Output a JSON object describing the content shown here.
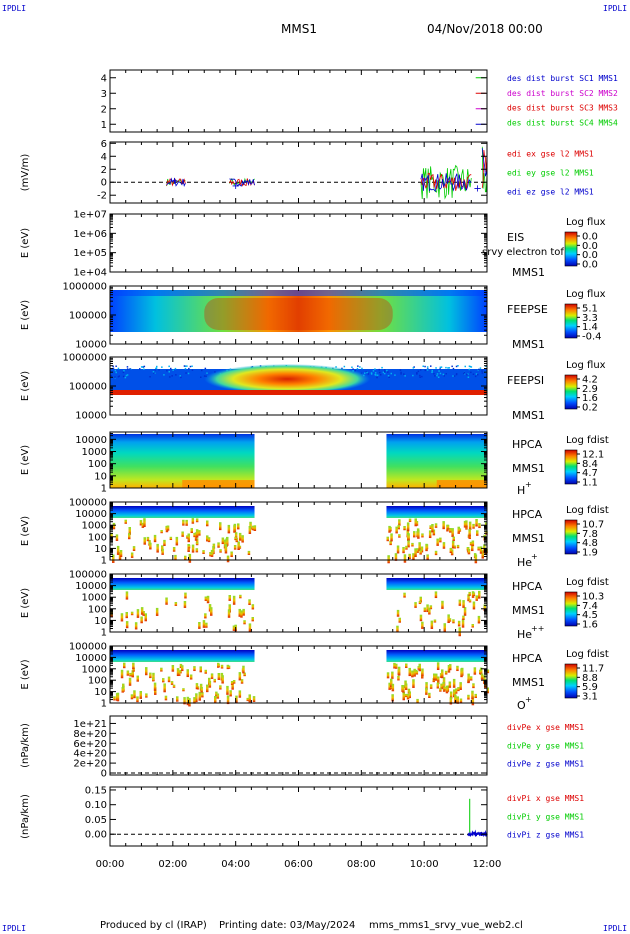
{
  "corner_label": "IPDLI",
  "header": {
    "mission": "MMS1",
    "date": "04/Nov/2018 00:00"
  },
  "footer": {
    "produced_by": "Produced by cl (IRAP)",
    "printing_date": "Printing date: 03/May/2024",
    "file": "mms_mms1_srvy_vue_web2.cl"
  },
  "time_axis": {
    "ticks": [
      "00:00",
      "02:00",
      "04:00",
      "06:00",
      "08:00",
      "10:00",
      "12:00"
    ],
    "range_hours": [
      0,
      12
    ]
  },
  "colors": {
    "red": "#dd0000",
    "green": "#00cc00",
    "blue": "#0000cc",
    "magenta": "#cc00cc"
  },
  "chart_data": [
    {
      "type": "line",
      "panel": "burst",
      "ylim": [
        0.5,
        4.5
      ],
      "yticks": [
        "1",
        "2",
        "3",
        "4"
      ],
      "ytick_values": [
        1,
        2,
        3,
        4
      ],
      "legend": [
        "des dist burst SC1 MMS1",
        "des dist burst SC2 MMS2",
        "des dist burst SC3 MMS3",
        "des dist burst SC4 MMS4"
      ],
      "legend_colors": [
        "#0000cc",
        "#cc00cc",
        "#dd0000",
        "#00cc00"
      ],
      "x": [
        11.8,
        11.8,
        11.8,
        11.8
      ],
      "values": [
        1,
        2,
        3,
        4
      ]
    },
    {
      "type": "line",
      "panel": "edi",
      "ylabel": "(mV/m)",
      "ylim": [
        -3.2,
        6.2
      ],
      "yticks": [
        "-2",
        "0",
        "2",
        "4",
        "6"
      ],
      "ytick_values": [
        -2,
        0,
        2,
        4,
        6
      ],
      "legend": [
        "edi ex gse l2 MMS1",
        "edi ey gse l2 MMS1",
        "edi ez gse l2 MMS1"
      ],
      "legend_colors": [
        "#dd0000",
        "#00cc00",
        "#0000cc"
      ],
      "segments_hours": [
        [
          1.8,
          2.4
        ],
        [
          3.8,
          4.6
        ],
        [
          9.9,
          11.5
        ],
        [
          11.85,
          12.0
        ]
      ]
    },
    {
      "type": "heatmap",
      "panel": "eis",
      "ylabel": "E (eV)",
      "ylim": [
        10000,
        10000000
      ],
      "yticks": [
        "1e+07",
        "1e+06",
        "1e+05",
        "1e+04"
      ],
      "ytick_values": [
        10000000,
        1000000,
        100000,
        10000
      ],
      "instrument": "EIS",
      "sc": "MMS1",
      "note": "srvy electron tof",
      "colorbar_title": "Log flux",
      "colorbar_ticks": [
        "0.0",
        "0.0",
        "0.0",
        "0.0"
      ]
    },
    {
      "type": "heatmap",
      "panel": "feepse",
      "ylabel": "E (eV)",
      "ylim": [
        10000,
        1000000
      ],
      "yticks": [
        "1000000",
        "100000",
        "10000"
      ],
      "ytick_values": [
        1000000,
        100000,
        10000
      ],
      "instrument": "FEEPSE",
      "sc": "MMS1",
      "colorbar_title": "Log flux",
      "colorbar_ticks": [
        "5.1",
        "3.3",
        "1.4",
        "-0.4"
      ]
    },
    {
      "type": "heatmap",
      "panel": "feepsi",
      "ylabel": "E (eV)",
      "ylim": [
        10000,
        1000000
      ],
      "yticks": [
        "1000000",
        "100000",
        "10000"
      ],
      "ytick_values": [
        1000000,
        100000,
        10000
      ],
      "instrument": "FEEPSI",
      "sc": "MMS1",
      "colorbar_title": "Log flux",
      "colorbar_ticks": [
        "4.2",
        "2.9",
        "1.6",
        "0.2"
      ]
    },
    {
      "type": "heatmap",
      "panel": "hpca_h",
      "ylabel": "E (eV)",
      "ylim": [
        1,
        40000
      ],
      "yticks": [
        "10000",
        "1000",
        "100",
        "10",
        "1"
      ],
      "ytick_values": [
        10000,
        1000,
        100,
        10,
        1
      ],
      "instrument": "HPCA",
      "sc": "MMS1",
      "species": "H",
      "charge": "+",
      "colorbar_title": "Log fdist",
      "colorbar_ticks": [
        "12.1",
        "8.4",
        "4.7",
        "1.1"
      ],
      "gap_hours": [
        4.6,
        8.8
      ]
    },
    {
      "type": "heatmap",
      "panel": "hpca_he1",
      "ylabel": "E (eV)",
      "ylim": [
        1,
        100000
      ],
      "yticks": [
        "100000",
        "10000",
        "1000",
        "100",
        "10",
        "1"
      ],
      "ytick_values": [
        100000,
        10000,
        1000,
        100,
        10,
        1
      ],
      "instrument": "HPCA",
      "sc": "MMS1",
      "species": "He",
      "charge": "+",
      "colorbar_title": "Log fdist",
      "colorbar_ticks": [
        "10.7",
        "7.8",
        "4.8",
        "1.9"
      ],
      "gap_hours": [
        4.6,
        8.8
      ]
    },
    {
      "type": "heatmap",
      "panel": "hpca_he2",
      "ylabel": "E (eV)",
      "ylim": [
        1,
        100000
      ],
      "yticks": [
        "100000",
        "10000",
        "1000",
        "100",
        "10",
        "1"
      ],
      "ytick_values": [
        100000,
        10000,
        1000,
        100,
        10,
        1
      ],
      "instrument": "HPCA",
      "sc": "MMS1",
      "species": "He",
      "charge": "++",
      "colorbar_title": "Log fdist",
      "colorbar_ticks": [
        "10.3",
        "7.4",
        "4.5",
        "1.6"
      ],
      "gap_hours": [
        4.6,
        8.8
      ]
    },
    {
      "type": "heatmap",
      "panel": "hpca_o",
      "ylabel": "E (eV)",
      "ylim": [
        1,
        100000
      ],
      "yticks": [
        "100000",
        "10000",
        "1000",
        "100",
        "10",
        "1"
      ],
      "ytick_values": [
        100000,
        10000,
        1000,
        100,
        10,
        1
      ],
      "instrument": "HPCA",
      "sc": "MMS1",
      "species": "O",
      "charge": "+",
      "colorbar_title": "Log fdist",
      "colorbar_ticks": [
        "11.7",
        "8.8",
        "5.9",
        "3.1"
      ],
      "gap_hours": [
        4.6,
        8.8
      ]
    },
    {
      "type": "line",
      "panel": "divpe",
      "ylabel": "(nPa/km)",
      "ylim": [
        -4e+19,
        1.15e+21
      ],
      "yticks": [
        "1e+21",
        "8e+20",
        "6e+20",
        "4e+20",
        "2e+20",
        "0"
      ],
      "ytick_values": [
        1e+21,
        8e+20,
        6e+20,
        4e+20,
        2e+20,
        0
      ],
      "legend": [
        "divPe x gse MMS1",
        "divPe y gse MMS1",
        "divPe z gse MMS1"
      ],
      "legend_colors": [
        "#dd0000",
        "#00cc00",
        "#0000cc"
      ]
    },
    {
      "type": "line",
      "panel": "divpi",
      "ylabel": "(nPa/km)",
      "ylim": [
        -0.04,
        0.16
      ],
      "yticks": [
        "0.15",
        "0.10",
        "0.05",
        "0.00"
      ],
      "ytick_values": [
        0.15,
        0.1,
        0.05,
        0.0
      ],
      "legend": [
        "divPi x gse MMS1",
        "divPi y gse MMS1",
        "divPi z gse MMS1"
      ],
      "legend_colors": [
        "#dd0000",
        "#00cc00",
        "#0000cc"
      ],
      "spike": {
        "x_hours": 11.45,
        "y_top": 0.12
      },
      "data_interval_hours": [
        11.4,
        12.0
      ]
    }
  ]
}
